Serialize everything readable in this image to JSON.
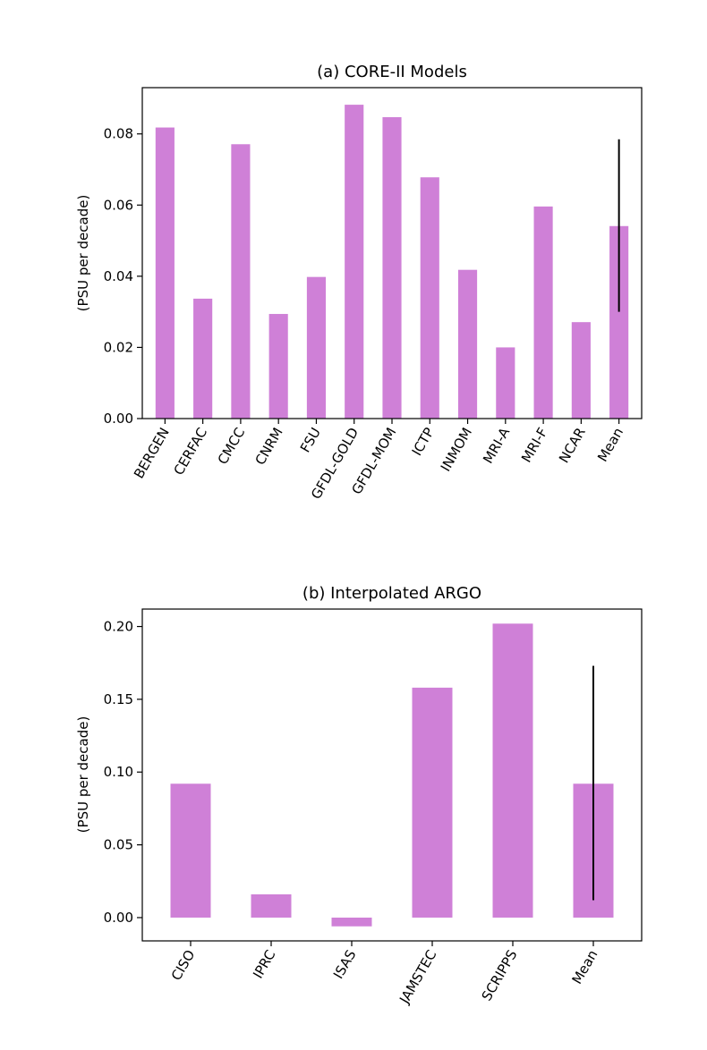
{
  "chart_data": [
    {
      "type": "bar",
      "title": "(a) CORE-II Models",
      "xlabel": "",
      "ylabel": "(PSU per decade)",
      "categories": [
        "BERGEN",
        "CERFAC",
        "CMCC",
        "CNRM",
        "FSU",
        "GFDL-GOLD",
        "GFDL-MOM",
        "ICTP",
        "INMOM",
        "MRI-A",
        "MRI-F",
        "NCAR",
        "Mean"
      ],
      "values": [
        0.0818,
        0.0337,
        0.0771,
        0.0294,
        0.0398,
        0.0882,
        0.0847,
        0.0678,
        0.0418,
        0.02,
        0.0596,
        0.0271,
        0.0541
      ],
      "error_bar": {
        "category": "Mean",
        "low": 0.03,
        "high": 0.0785
      },
      "ylim": [
        0,
        0.093
      ],
      "yticks": [
        "0.00",
        "0.02",
        "0.04",
        "0.06",
        "0.08"
      ],
      "color": "#cf80d7",
      "grid": false
    },
    {
      "type": "bar",
      "title": "(b) Interpolated ARGO",
      "xlabel": "",
      "ylabel": "(PSU per decade)",
      "categories": [
        "CISO",
        "IPRC",
        "ISAS",
        "JAMSTEC",
        "SCRIPPS",
        "Mean"
      ],
      "values": [
        0.092,
        0.016,
        -0.006,
        0.158,
        0.202,
        0.092
      ],
      "error_bar": {
        "category": "Mean",
        "low": 0.012,
        "high": 0.173
      },
      "ylim": [
        -0.016,
        0.212
      ],
      "yticks": [
        "0.00",
        "0.05",
        "0.10",
        "0.15",
        "0.20"
      ],
      "color": "#cf80d7",
      "grid": false
    }
  ]
}
